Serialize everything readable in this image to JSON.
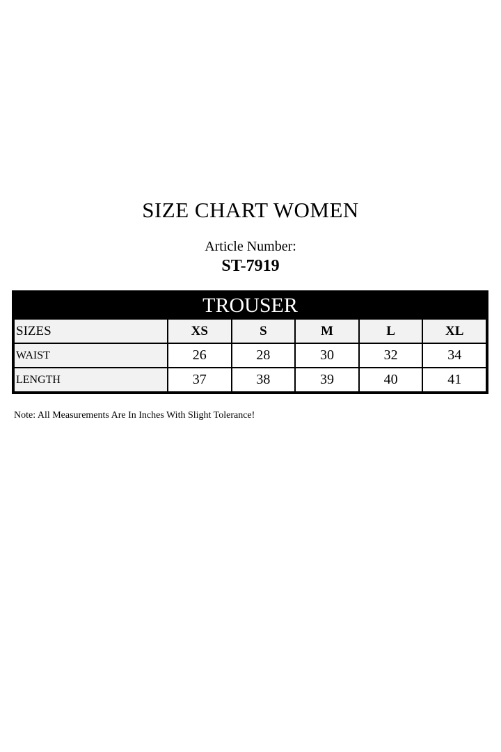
{
  "title": "SIZE CHART WOMEN",
  "article": {
    "label": "Article Number:",
    "number": "ST-7919"
  },
  "table": {
    "header": "TROUSER",
    "sizes_label": "SIZES",
    "sizes": [
      "XS",
      "S",
      "M",
      "L",
      "XL"
    ],
    "rows": [
      {
        "label": "WAIST",
        "values": [
          "26",
          "28",
          "30",
          "32",
          "34"
        ]
      },
      {
        "label": "LENGTH",
        "values": [
          "37",
          "38",
          "39",
          "40",
          "41"
        ]
      }
    ]
  },
  "note": "Note: All Measurements Are In Inches With Slight Tolerance!"
}
